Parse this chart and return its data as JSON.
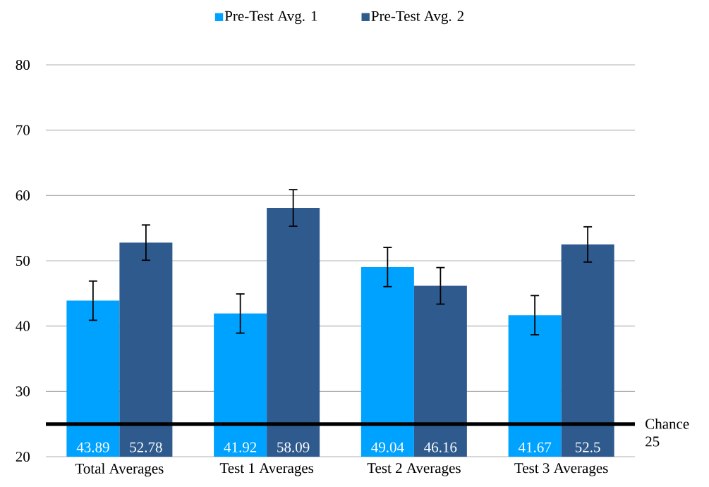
{
  "chart_data": {
    "type": "bar",
    "categories": [
      "Total Averages",
      "Test 1 Averages",
      "Test 2 Averages",
      "Test 3 Averages"
    ],
    "series": [
      {
        "name": "Pre-Test Avg. 1",
        "color": "#00a2ff",
        "values": [
          43.89,
          41.92,
          49.04,
          41.67
        ],
        "errors": [
          3,
          3,
          3,
          3
        ]
      },
      {
        "name": "Pre-Test Avg. 2",
        "color": "#2f5a8e",
        "values": [
          52.78,
          58.09,
          46.16,
          52.5
        ],
        "errors": [
          2.7,
          2.8,
          2.8,
          2.7
        ]
      }
    ],
    "ylim": [
      20,
      80
    ],
    "yticks": [
      20,
      30,
      40,
      50,
      60,
      70,
      80
    ],
    "grid": "y",
    "legend": "top",
    "data_labels": true,
    "ref_lines": [
      {
        "axis": "y",
        "value": 25,
        "label": "Chance 25",
        "color": "#000000"
      }
    ]
  }
}
